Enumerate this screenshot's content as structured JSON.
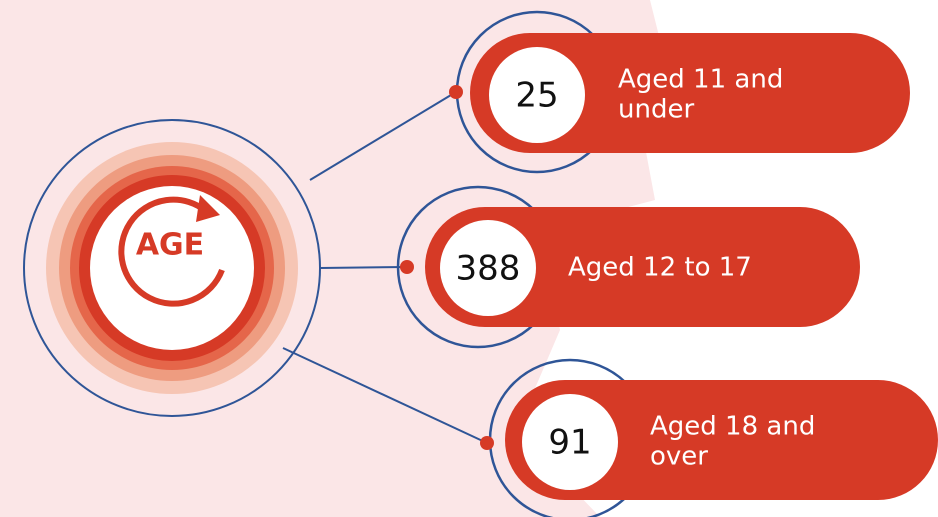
{
  "center": {
    "label": "AGE"
  },
  "items": [
    {
      "value": 25,
      "label_lines": [
        "Aged 11 and",
        "under"
      ]
    },
    {
      "value": 388,
      "label_lines": [
        "Aged 12 to 17"
      ]
    },
    {
      "value": 91,
      "label_lines": [
        "Aged 18 and",
        "over"
      ]
    }
  ]
}
